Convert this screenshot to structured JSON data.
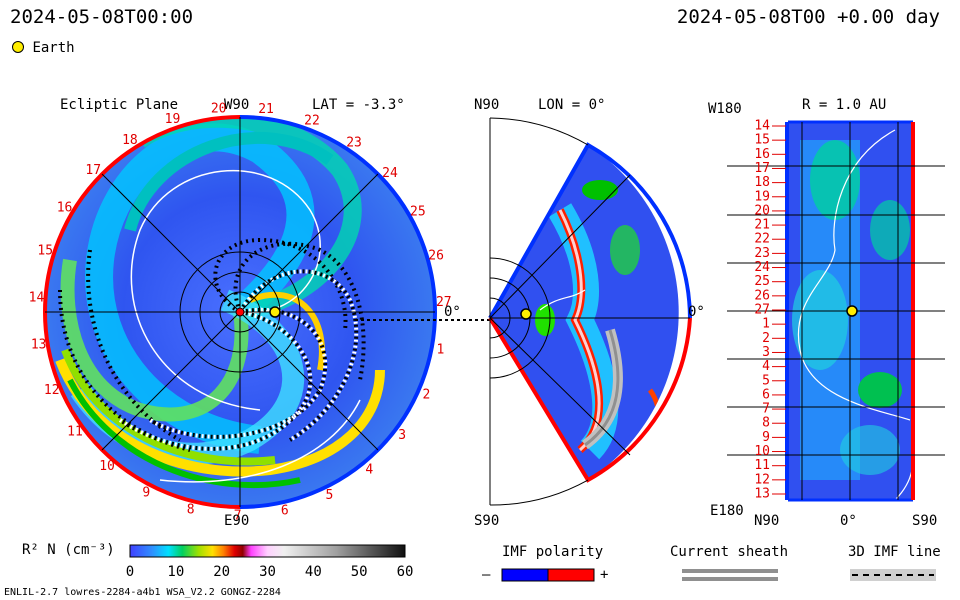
{
  "header": {
    "left_time": "2024-05-08T00:00",
    "right_time": "2024-05-08T00 +0.00 day"
  },
  "legend": {
    "earth_label": "Earth",
    "earth_color": "#ffee00"
  },
  "panels": {
    "ecliptic": {
      "title": "Ecliptic Plane",
      "lat_label": "LAT = -3.3°",
      "top_label": "W90",
      "bottom_label": "E90",
      "zero_label": "0°",
      "rim_numbers": [
        "20",
        "21",
        "22",
        "23",
        "24",
        "25",
        "26",
        "27",
        "1",
        "2",
        "3",
        "4",
        "5",
        "6",
        "7",
        "8",
        "9",
        "10",
        "11",
        "12",
        "13",
        "14",
        "15",
        "16",
        "17",
        "18",
        "19"
      ]
    },
    "meridional": {
      "lon_label": "LON = 0°",
      "top_label": "N90",
      "bottom_label": "S90",
      "zero_label": "0°"
    },
    "shell": {
      "r_label": "R = 1.0 AU",
      "top_left_label": "W180",
      "bottom_left_label": "E180",
      "x_labels": [
        "N90",
        "0°",
        "S90"
      ],
      "rotation_numbers": [
        "14",
        "15",
        "16",
        "17",
        "18",
        "19",
        "20",
        "21",
        "22",
        "23",
        "24",
        "25",
        "26",
        "27",
        "1",
        "2",
        "3",
        "4",
        "5",
        "6",
        "7",
        "8",
        "9",
        "10",
        "11",
        "12",
        "13"
      ]
    }
  },
  "chart_data": {
    "type": "heatmap",
    "colorbar": {
      "label": "R² N (cm⁻³)",
      "ticks": [
        0,
        10,
        20,
        30,
        40,
        50,
        60
      ],
      "range": [
        0,
        60
      ]
    },
    "earth_position": {
      "r_au": 1.0,
      "lat_deg": -3.3,
      "lon_deg": 0
    }
  },
  "keys": {
    "imf_polarity": {
      "label": "IMF polarity",
      "minus": "–",
      "plus": "+",
      "neg_color": "#0000ff",
      "pos_color": "#ff0000"
    },
    "current_sheath": {
      "label": "Current sheath"
    },
    "imf_line": {
      "label": "3D IMF line"
    }
  },
  "footer": {
    "model_info": "ENLIL-2.7 lowres-2284-a4b1 WSA_V2.2 GONGZ-2284"
  }
}
